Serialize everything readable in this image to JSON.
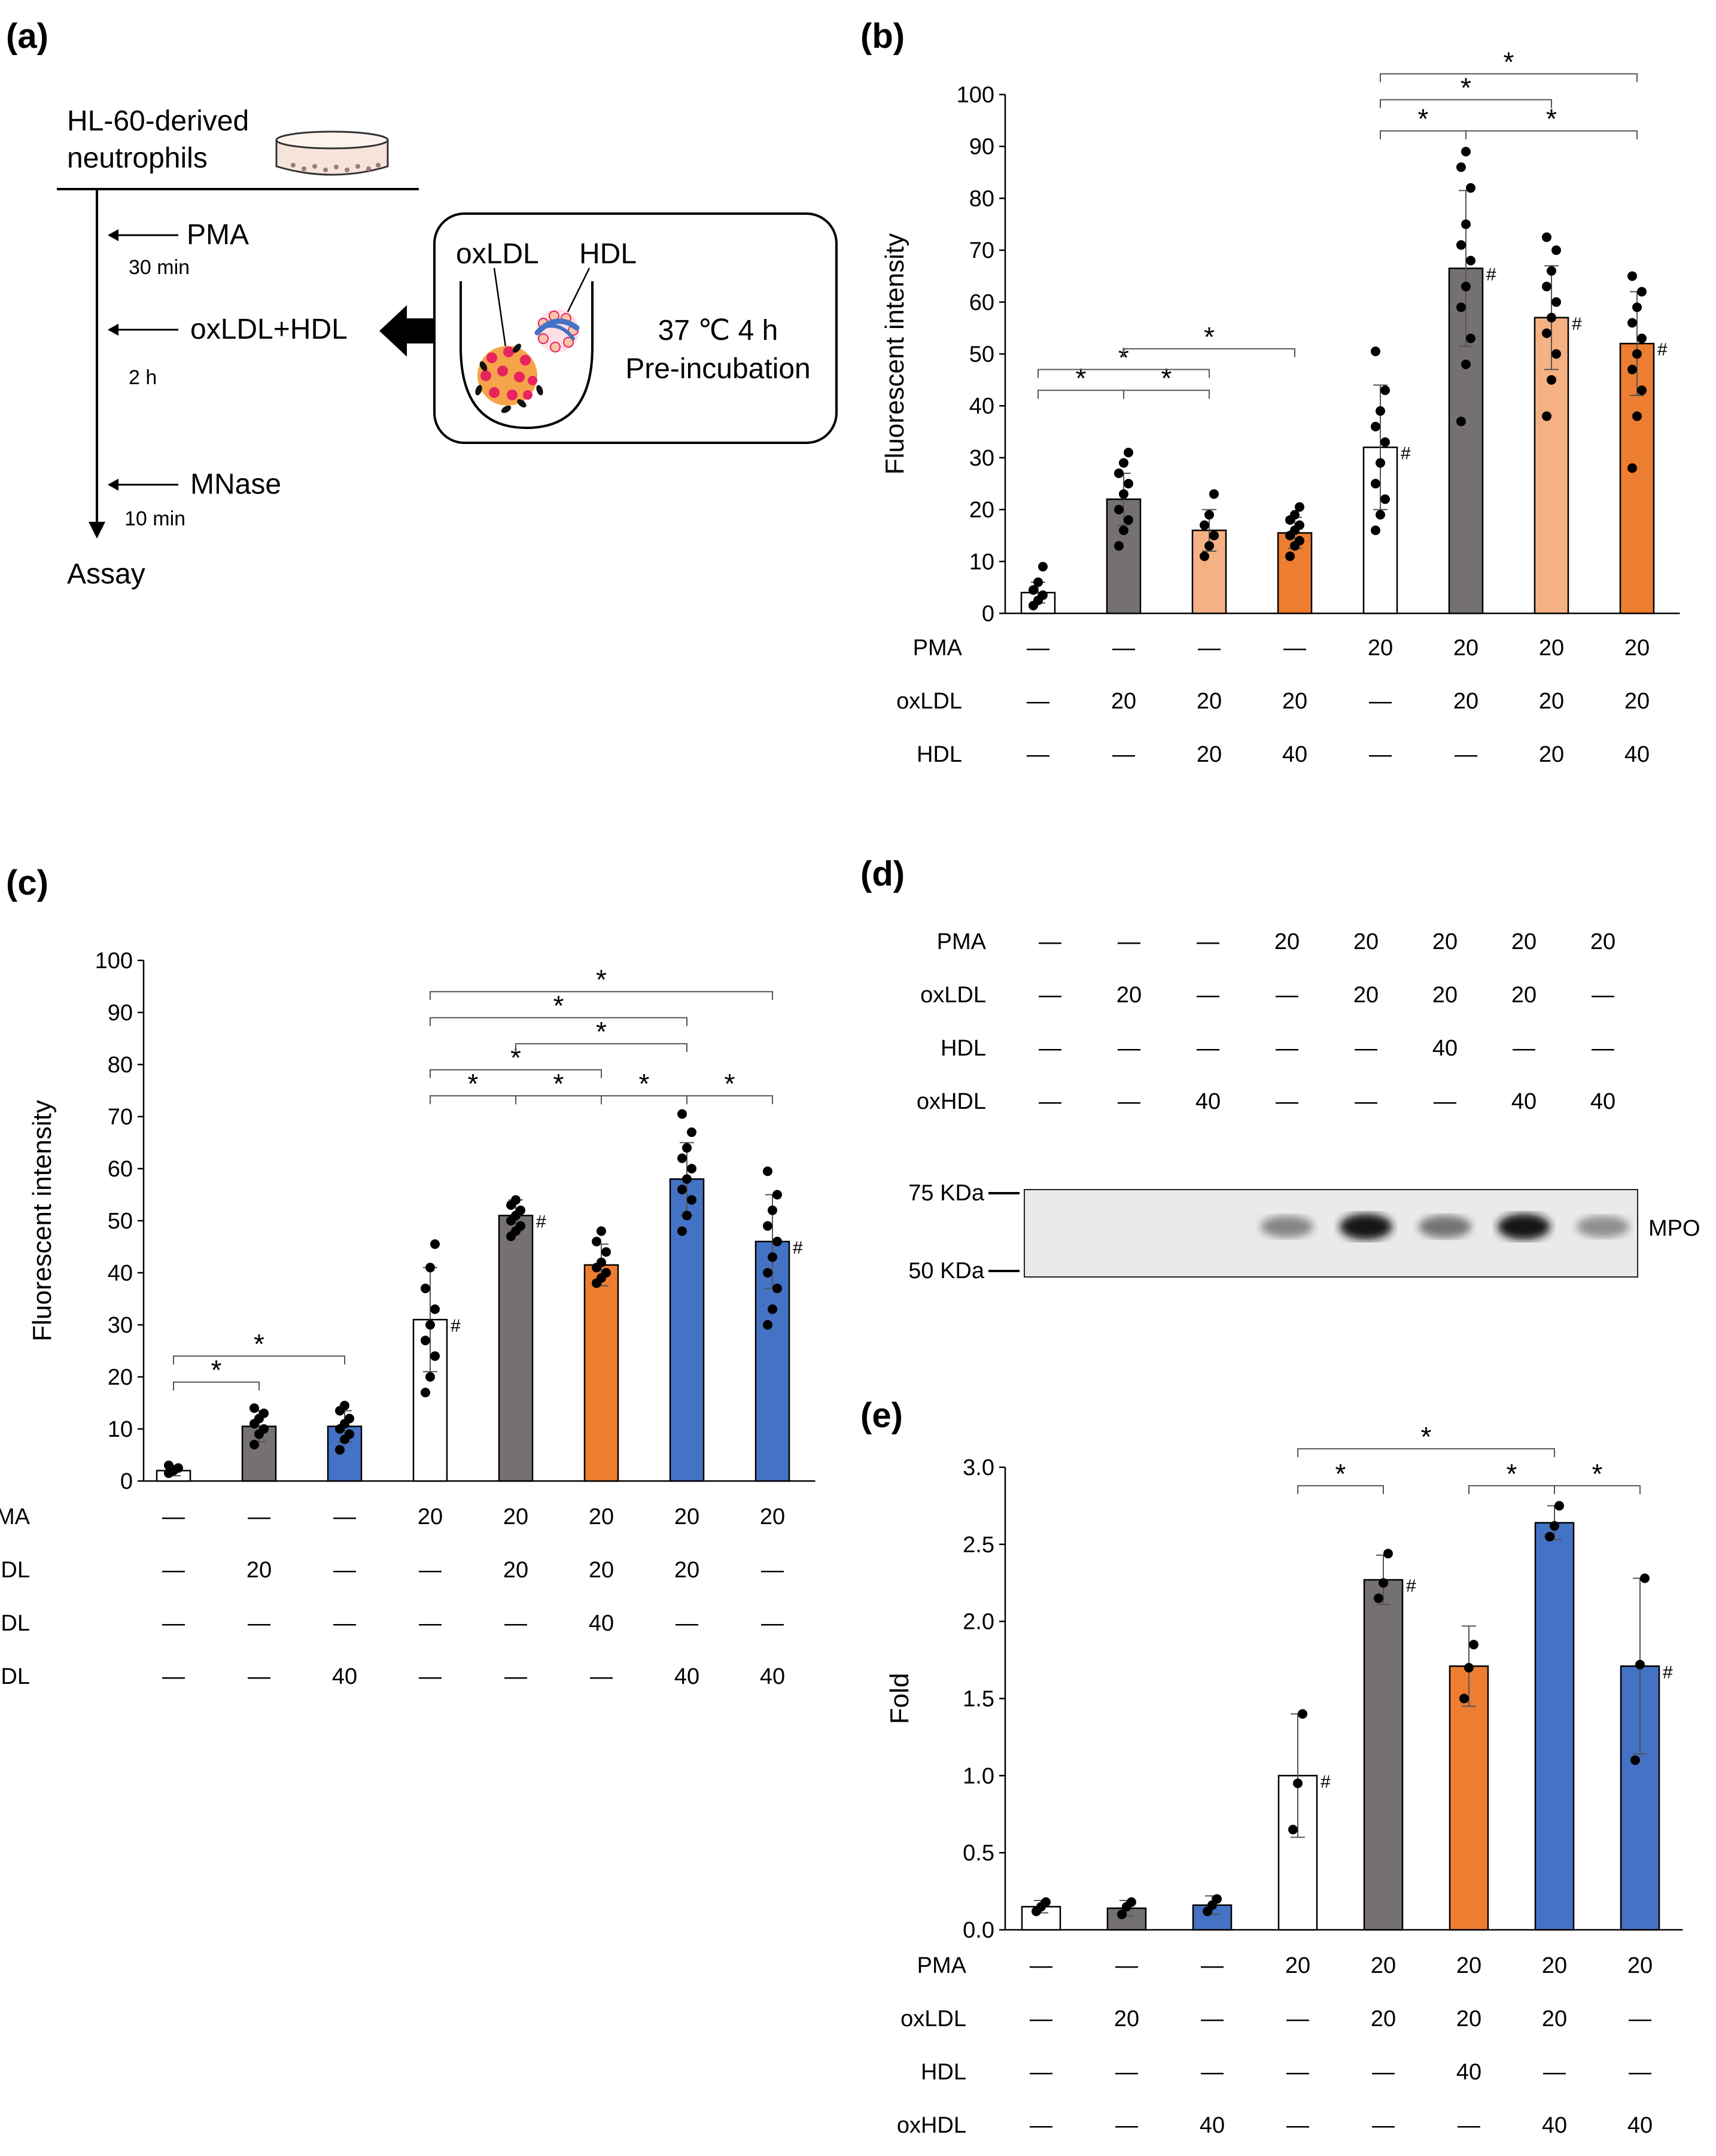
{
  "panels": {
    "a": {
      "label": "(a)"
    },
    "b": {
      "label": "(b)"
    },
    "c": {
      "label": "(c)"
    },
    "d": {
      "label": "(d)"
    },
    "e": {
      "label": "(e)"
    }
  },
  "schematic": {
    "cells_label_line1": "HL-60-derived",
    "cells_label_line2": "neutrophils",
    "step1": "PMA",
    "step1_time": "30 min",
    "step2": "oxLDL+HDL",
    "step2_time": "2 h",
    "step3": "MNase",
    "step3_time": "10 min",
    "final": "Assay",
    "box_label_oxldl": "oxLDL",
    "box_label_hdl": "HDL",
    "box_condition_line1": "37 ℃ 4 h",
    "box_condition_line2": "Pre-incubation"
  },
  "blot": {
    "rows": [
      {
        "label": "PMA",
        "values": [
          "—",
          "—",
          "—",
          "20",
          "20",
          "20",
          "20",
          "20"
        ]
      },
      {
        "label": "oxLDL",
        "values": [
          "—",
          "20",
          "—",
          "—",
          "20",
          "20",
          "20",
          "—"
        ]
      },
      {
        "label": "HDL",
        "values": [
          "—",
          "—",
          "—",
          "—",
          "—",
          "40",
          "—",
          "—"
        ]
      },
      {
        "label": "oxHDL",
        "values": [
          "—",
          "—",
          "40",
          "—",
          "—",
          "—",
          "40",
          "40"
        ]
      }
    ],
    "marker_top": "75 KDa",
    "marker_bottom": "50 KDa",
    "band_label": "MPO",
    "band_intensity": [
      0,
      0,
      0,
      0.35,
      0.95,
      0.45,
      0.95,
      0.3
    ]
  },
  "chart_data": [
    {
      "panel": "b",
      "type": "bar",
      "ylabel": "Fluorescent intensity",
      "ylim": [
        0,
        100
      ],
      "yticks": [
        "0",
        "10",
        "20",
        "30",
        "40",
        "50",
        "60",
        "70",
        "80",
        "90",
        "100"
      ],
      "values": [
        4,
        22,
        16,
        15.5,
        32,
        66.5,
        57,
        52
      ],
      "errors": [
        2,
        5,
        4,
        3,
        12,
        15,
        10,
        10
      ],
      "colors": [
        "#ffffff",
        "#767171",
        "#f4b183",
        "#ed7d31",
        "#ffffff",
        "#767171",
        "#f4b183",
        "#ed7d31"
      ],
      "hash": [
        false,
        false,
        false,
        false,
        true,
        true,
        true,
        true
      ],
      "points": [
        [
          1.5,
          2.5,
          3.5,
          4.5,
          6,
          9
        ],
        [
          13,
          16,
          18,
          20,
          23,
          25,
          27,
          29,
          31
        ],
        [
          11,
          13,
          15,
          17,
          19,
          23
        ],
        [
          11,
          13,
          14,
          15,
          16,
          17,
          18,
          19,
          20.5
        ],
        [
          16,
          19,
          22,
          25,
          29,
          33,
          36,
          39,
          43,
          50.5
        ],
        [
          37,
          48,
          53,
          59,
          63,
          68,
          71,
          75,
          82,
          86,
          89
        ],
        [
          38,
          45,
          50,
          54,
          57,
          60,
          63,
          66,
          70,
          72.5
        ],
        [
          28,
          38,
          43,
          47,
          50,
          53,
          56,
          59,
          62,
          65
        ]
      ],
      "rows": [
        {
          "label": "PMA",
          "values": [
            "—",
            "—",
            "—",
            "—",
            "20",
            "20",
            "20",
            "20"
          ]
        },
        {
          "label": "oxLDL",
          "values": [
            "—",
            "20",
            "20",
            "20",
            "—",
            "20",
            "20",
            "20"
          ]
        },
        {
          "label": "HDL",
          "values": [
            "—",
            "—",
            "20",
            "40",
            "—",
            "—",
            "20",
            "40"
          ]
        }
      ],
      "sig_label": "*",
      "hash_label": "#",
      "brackets": [
        {
          "from": 0,
          "to": 1,
          "y": 43
        },
        {
          "from": 1,
          "to": 2,
          "y": 43
        },
        {
          "from": 0,
          "to": 2,
          "y": 47
        },
        {
          "from": 1,
          "to": 3,
          "y": 51
        },
        {
          "from": 4,
          "to": 5,
          "y": 93
        },
        {
          "from": 5,
          "to": 7,
          "y": 93
        },
        {
          "from": 4,
          "to": 6,
          "y": 99
        },
        {
          "from": 4,
          "to": 7,
          "y": 104
        }
      ]
    },
    {
      "panel": "c",
      "type": "bar",
      "ylabel": "Fluorescent intensity",
      "ylim": [
        0,
        100
      ],
      "yticks": [
        "0",
        "10",
        "20",
        "30",
        "40",
        "50",
        "60",
        "70",
        "80",
        "90",
        "100"
      ],
      "values": [
        2,
        10.5,
        10.5,
        31,
        51,
        41.5,
        58,
        46
      ],
      "errors": [
        1,
        3,
        3,
        10,
        3,
        4,
        7,
        9
      ],
      "colors": [
        "#ffffff",
        "#767171",
        "#4472c4",
        "#ffffff",
        "#767171",
        "#ed7d31",
        "#4472c4",
        "#4472c4"
      ],
      "hash": [
        false,
        false,
        false,
        true,
        true,
        false,
        false,
        true
      ],
      "points": [
        [
          1.5,
          2.0,
          2.5,
          3.0
        ],
        [
          7,
          9,
          10,
          11,
          12,
          13,
          14
        ],
        [
          6,
          8,
          9,
          10,
          11,
          12,
          13.5,
          14.5
        ],
        [
          17,
          20,
          24,
          27,
          30,
          33,
          37,
          41,
          45.5
        ],
        [
          47,
          48,
          49,
          50,
          51,
          52,
          53,
          54
        ],
        [
          38,
          39,
          40,
          41,
          42,
          44,
          46,
          48
        ],
        [
          48,
          51,
          54,
          56,
          58,
          60,
          62,
          64,
          67,
          70.5
        ],
        [
          30,
          33,
          37,
          40,
          43,
          46,
          49,
          52,
          55,
          59.5
        ]
      ],
      "rows": [
        {
          "label": "PMA",
          "values": [
            "—",
            "—",
            "—",
            "20",
            "20",
            "20",
            "20",
            "20"
          ]
        },
        {
          "label": "oxLDL",
          "values": [
            "—",
            "20",
            "—",
            "—",
            "20",
            "20",
            "20",
            "—"
          ]
        },
        {
          "label": "HDL",
          "values": [
            "—",
            "—",
            "—",
            "—",
            "—",
            "40",
            "—",
            "—"
          ]
        },
        {
          "label": "oxHDL",
          "values": [
            "—",
            "—",
            "40",
            "—",
            "—",
            "—",
            "40",
            "40"
          ]
        }
      ],
      "sig_label": "*",
      "hash_label": "#",
      "brackets": [
        {
          "from": 0,
          "to": 1,
          "y": 19
        },
        {
          "from": 0,
          "to": 2,
          "y": 24
        },
        {
          "from": 3,
          "to": 4,
          "y": 74
        },
        {
          "from": 4,
          "to": 5,
          "y": 74
        },
        {
          "from": 5,
          "to": 6,
          "y": 74
        },
        {
          "from": 6,
          "to": 7,
          "y": 74
        },
        {
          "from": 3,
          "to": 5,
          "y": 79
        },
        {
          "from": 4,
          "to": 6,
          "y": 84
        },
        {
          "from": 3,
          "to": 6,
          "y": 89
        },
        {
          "from": 3,
          "to": 7,
          "y": 94
        }
      ]
    },
    {
      "panel": "e",
      "type": "bar",
      "ylabel": "Fold",
      "ylim": [
        0,
        3
      ],
      "yticks": [
        "0.0",
        "0.5",
        "1.0",
        "1.5",
        "2.0",
        "2.5",
        "3.0"
      ],
      "values": [
        0.15,
        0.14,
        0.16,
        1.0,
        2.27,
        1.71,
        2.64,
        1.71
      ],
      "errors": [
        0.04,
        0.05,
        0.06,
        0.4,
        0.16,
        0.26,
        0.11,
        0.57
      ],
      "colors": [
        "#ffffff",
        "#767171",
        "#4472c4",
        "#ffffff",
        "#767171",
        "#ed7d31",
        "#4472c4",
        "#4472c4"
      ],
      "hash": [
        false,
        false,
        false,
        true,
        true,
        false,
        false,
        true
      ],
      "points": [
        [
          0.12,
          0.15,
          0.18
        ],
        [
          0.1,
          0.15,
          0.18
        ],
        [
          0.12,
          0.16,
          0.2
        ],
        [
          0.65,
          0.95,
          1.4
        ],
        [
          2.15,
          2.25,
          2.44
        ],
        [
          1.5,
          1.7,
          1.85
        ],
        [
          2.55,
          2.62,
          2.75
        ],
        [
          1.1,
          1.72,
          2.28
        ]
      ],
      "rows": [
        {
          "label": "PMA",
          "values": [
            "—",
            "—",
            "—",
            "20",
            "20",
            "20",
            "20",
            "20"
          ]
        },
        {
          "label": "oxLDL",
          "values": [
            "—",
            "20",
            "—",
            "—",
            "20",
            "20",
            "20",
            "—"
          ]
        },
        {
          "label": "HDL",
          "values": [
            "—",
            "—",
            "—",
            "—",
            "—",
            "40",
            "—",
            "—"
          ]
        },
        {
          "label": "oxHDL",
          "values": [
            "—",
            "—",
            "40",
            "—",
            "—",
            "—",
            "40",
            "40"
          ]
        }
      ],
      "sig_label": "*",
      "hash_label": "#",
      "brackets": [
        {
          "from": 3,
          "to": 4,
          "y": 2.88
        },
        {
          "from": 5,
          "to": 6,
          "y": 2.88
        },
        {
          "from": 6,
          "to": 7,
          "y": 2.88
        },
        {
          "from": 3,
          "to": 6,
          "y": 3.12
        }
      ]
    }
  ]
}
